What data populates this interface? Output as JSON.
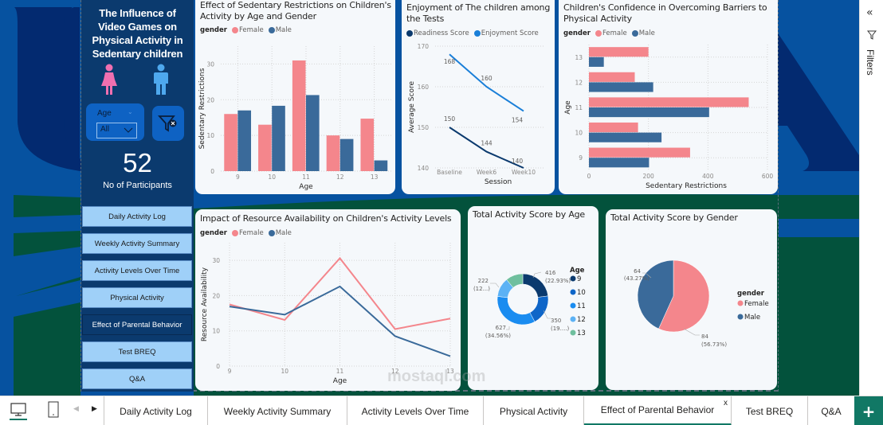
{
  "window": {
    "app": "Power BI Report"
  },
  "colors": {
    "female": "#f4868c",
    "male": "#3a6a9a",
    "readiness": "#0b3a6e",
    "enjoyment": "#1a7fd8",
    "accent": "#117865"
  },
  "left_panel": {
    "title": "The Influence of Video Games on Physical Activity in Sedentary children",
    "female_icon": "female-figure",
    "male_icon": "male-figure",
    "slicer": {
      "label": "Age",
      "value": "All"
    },
    "clear_filter_icon": "clear-filter",
    "kpi": {
      "value": "52",
      "label": "No of Participants"
    }
  },
  "nav": {
    "buttons": [
      {
        "label": "Daily Activity Log",
        "active": false
      },
      {
        "label": "Weekly Activity Summary",
        "active": false
      },
      {
        "label": "Activity Levels Over Time",
        "active": false
      },
      {
        "label": "Physical Activity",
        "active": false
      },
      {
        "label": "Effect of Parental Behavior",
        "active": true
      },
      {
        "label": "Test BREQ",
        "active": false
      },
      {
        "label": "Q&A",
        "active": false
      }
    ]
  },
  "filter_pane": {
    "label": "Filters"
  },
  "tabs": {
    "items": [
      {
        "label": "Daily Activity Log"
      },
      {
        "label": "Weekly Activity Summary"
      },
      {
        "label": "Activity Levels Over Time"
      },
      {
        "label": "Physical Activity"
      },
      {
        "label": "Effect of Parental Behavior",
        "active": true,
        "close": "x"
      },
      {
        "label": "Test BREQ"
      },
      {
        "label": "Q&A"
      }
    ],
    "add_label": "+"
  },
  "watermark": "mostaql.com",
  "chart_data": [
    {
      "id": "sedentary",
      "type": "bar",
      "title": "Effect of Sedentary Restrictions on Children's Activity by Age and Gender",
      "legend_title": "gender",
      "categories": [
        "9",
        "10",
        "11",
        "12",
        "13"
      ],
      "series": [
        {
          "name": "Female",
          "values": [
            16,
            13,
            31,
            10,
            14.7
          ]
        },
        {
          "name": "Male",
          "values": [
            17,
            18.3,
            21.3,
            9,
            3
          ]
        }
      ],
      "xlabel": "Age",
      "ylabel": "Sedentary Restrictions",
      "ylim": [
        0,
        35
      ],
      "yticks": [
        0,
        10,
        20,
        30
      ],
      "grid": true,
      "legend": "top-left"
    },
    {
      "id": "enjoyment",
      "type": "line",
      "title": "Enjoyment of The children among the Tests",
      "categories": [
        "Baseline",
        "Week6",
        "Week10"
      ],
      "series": [
        {
          "name": "Readiness Score",
          "values": [
            150,
            144,
            140
          ]
        },
        {
          "name": "Enjoyment Score",
          "values": [
            168,
            160,
            154
          ]
        }
      ],
      "xlabel": "Session",
      "ylabel": "Average Score",
      "ylim": [
        140,
        170
      ],
      "yticks": [
        140,
        150,
        160,
        170
      ],
      "grid": true,
      "legend": "top-left"
    },
    {
      "id": "confidence",
      "type": "bar",
      "orientation": "horizontal",
      "title": "Children's Confidence in Overcoming Barriers to Physical Activity",
      "legend_title": "gender",
      "categories": [
        "13",
        "12",
        "11",
        "10",
        "9"
      ],
      "series": [
        {
          "name": "Female",
          "values": [
            200,
            154,
            537,
            165,
            340
          ]
        },
        {
          "name": "Male",
          "values": [
            50,
            216,
            404,
            244,
            202
          ]
        }
      ],
      "xlabel": "Sedentary Restrictions",
      "ylabel": "Age",
      "xlim": [
        0,
        600
      ],
      "xticks": [
        0,
        200,
        400,
        600
      ],
      "grid": true,
      "legend": "top-left"
    },
    {
      "id": "resource",
      "type": "line",
      "title": "Impact of Resource Availability on Children's Activity Levels",
      "legend_title": "gender",
      "categories": [
        "9",
        "10",
        "11",
        "12",
        "13"
      ],
      "series": [
        {
          "name": "Female",
          "values": [
            17.5,
            13.1,
            30.6,
            10.5,
            13.5
          ]
        },
        {
          "name": "Male",
          "values": [
            16.9,
            14.6,
            22.6,
            8.5,
            2.8
          ]
        }
      ],
      "xlabel": "Age",
      "ylabel": "Resource Availability",
      "ylim": [
        0,
        35
      ],
      "yticks": [
        0,
        10,
        20,
        30
      ],
      "grid": true,
      "legend": "top-left"
    },
    {
      "id": "by_age",
      "type": "pie",
      "variant": "donut",
      "title": "Total Activity Score by Age",
      "legend_title": "Age",
      "labels": [
        "9",
        "10",
        "11",
        "12",
        "13"
      ],
      "values": [
        416,
        350,
        627,
        222,
        199
      ],
      "colors": [
        "#0b3a6e",
        "#0f66c8",
        "#1a8cf0",
        "#5cb2f5",
        "#6fbf9e"
      ],
      "data_labels": [
        {
          "value": "416",
          "pct": "(22.93%)"
        },
        {
          "value": "350",
          "pct": "(19....)"
        },
        {
          "value": "627",
          "pct": "(34.56%)"
        },
        {
          "value": "222",
          "pct": "(12...)"
        }
      ],
      "legend": "right"
    },
    {
      "id": "by_gender",
      "type": "pie",
      "title": "Total Activity Score by Gender",
      "legend_title": "gender",
      "labels": [
        "Female",
        "Male"
      ],
      "values": [
        84,
        64
      ],
      "colors": [
        "#f4868c",
        "#3a6a9a"
      ],
      "data_labels": [
        {
          "value": "84",
          "pct": "(56.73%)"
        },
        {
          "value": "64",
          "pct": "(43.27%)"
        }
      ],
      "legend": "right"
    }
  ]
}
